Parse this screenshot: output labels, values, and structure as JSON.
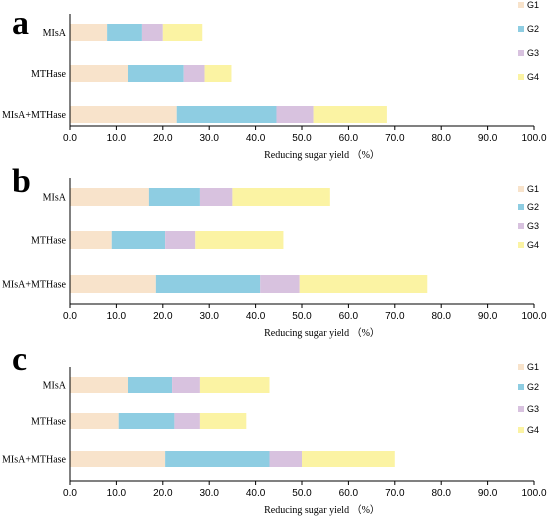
{
  "colors": {
    "G1": "#f8e3cb",
    "G2": "#8ecde2",
    "G3": "#d8c2df",
    "G4": "#fbf3a3",
    "axis": "#000000"
  },
  "chart_data": [
    {
      "panel": "a",
      "type": "bar",
      "orientation": "horizontal",
      "stacked": true,
      "categories": [
        "MIsA",
        "MTHase",
        "MIsA+MTHase"
      ],
      "series": [
        {
          "name": "G1",
          "values": [
            8.0,
            12.5,
            23.0
          ]
        },
        {
          "name": "G2",
          "values": [
            7.5,
            12.0,
            21.5
          ]
        },
        {
          "name": "G3",
          "values": [
            4.5,
            4.5,
            8.0
          ]
        },
        {
          "name": "G4",
          "values": [
            8.5,
            5.8,
            15.8
          ]
        }
      ],
      "xlabel": "Reducing sugar yield （%）",
      "xlim": [
        0,
        100
      ],
      "xticks": [
        "0.0",
        "10.0",
        "20.0",
        "30.0",
        "40.0",
        "50.0",
        "60.0",
        "70.0",
        "80.0",
        "90.0",
        "100.0"
      ],
      "legend": "right",
      "grid": false
    },
    {
      "panel": "b",
      "type": "bar",
      "orientation": "horizontal",
      "stacked": true,
      "categories": [
        "MIsA",
        "MTHase",
        "MIsA+MTHase"
      ],
      "series": [
        {
          "name": "G1",
          "values": [
            17.0,
            9.0,
            18.5
          ]
        },
        {
          "name": "G2",
          "values": [
            11.0,
            11.5,
            22.5
          ]
        },
        {
          "name": "G3",
          "values": [
            7.0,
            6.5,
            8.5
          ]
        },
        {
          "name": "G4",
          "values": [
            21.0,
            19.0,
            27.5
          ]
        }
      ],
      "xlabel": "Reducing sugar yield （%）",
      "xlim": [
        0,
        100
      ],
      "xticks": [
        "0.0",
        "10.0",
        "20.0",
        "30.0",
        "40.0",
        "50.0",
        "60.0",
        "70.0",
        "80.0",
        "90.0",
        "100.0"
      ],
      "legend": "right",
      "grid": false
    },
    {
      "panel": "c",
      "type": "bar",
      "orientation": "horizontal",
      "stacked": true,
      "categories": [
        "MIsA",
        "MTHase",
        "MIsA+MTHase"
      ],
      "series": [
        {
          "name": "G1",
          "values": [
            12.5,
            10.5,
            20.5
          ]
        },
        {
          "name": "G2",
          "values": [
            9.5,
            12.0,
            22.5
          ]
        },
        {
          "name": "G3",
          "values": [
            6.0,
            5.5,
            7.0
          ]
        },
        {
          "name": "G4",
          "values": [
            15.0,
            10.0,
            20.0
          ]
        }
      ],
      "xlabel": "Reducing sugar yield （%）",
      "xlim": [
        0,
        100
      ],
      "xticks": [
        "0.0",
        "10.0",
        "20.0",
        "30.0",
        "40.0",
        "50.0",
        "60.0",
        "70.0",
        "80.0",
        "90.0",
        "100.0"
      ],
      "legend": "right",
      "grid": false
    }
  ]
}
